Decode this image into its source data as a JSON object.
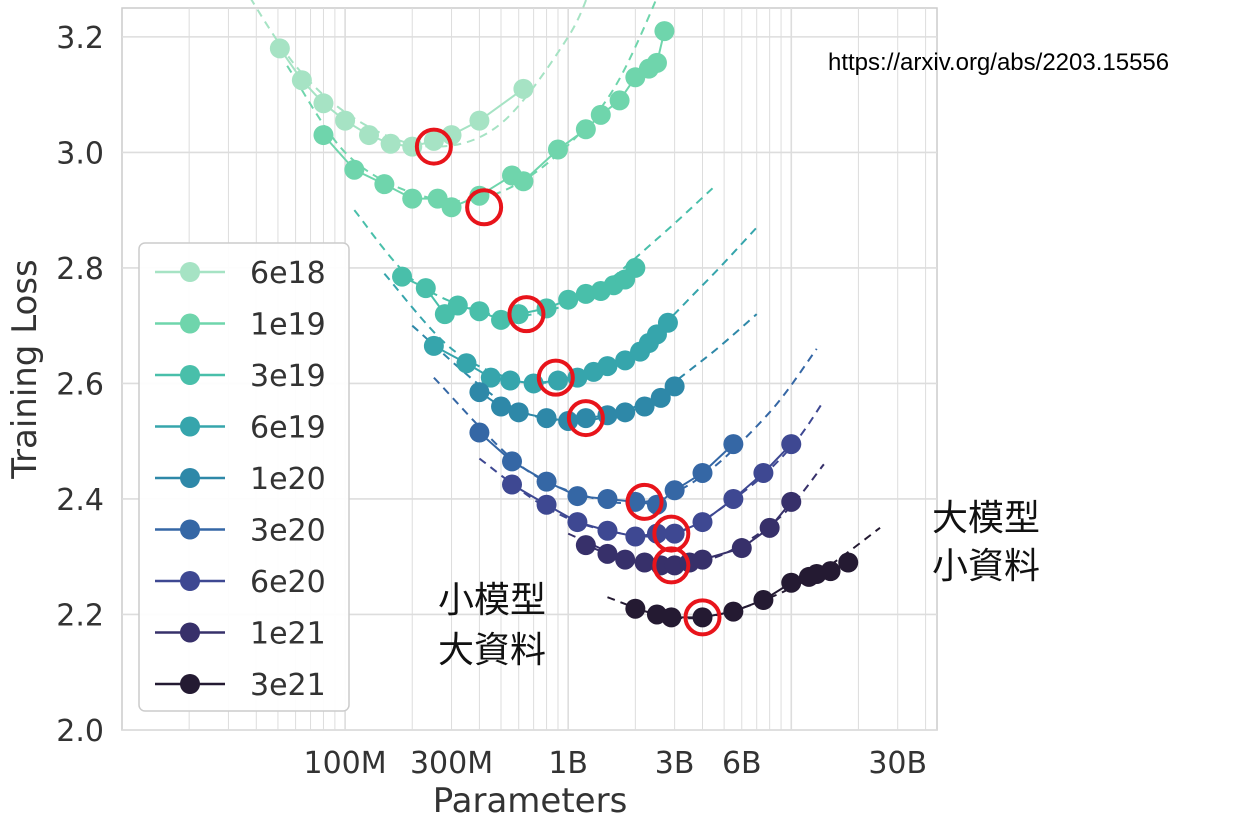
{
  "annotations": {
    "url": "https://arxiv.org/abs/2203.15556",
    "big_model": {
      "line1": "大模型",
      "line2": "小資料"
    },
    "small_model": {
      "line1": "小模型",
      "line2": "大資料"
    }
  },
  "chart_data": {
    "type": "scatter",
    "title": "",
    "xlabel": "Parameters",
    "ylabel": "Training Loss",
    "x_scale": "log",
    "xlim": [
      10000000,
      45000000000
    ],
    "ylim": [
      2.0,
      3.25
    ],
    "x_ticks": [
      {
        "value": 100000000,
        "label": "100M"
      },
      {
        "value": 300000000,
        "label": "300M"
      },
      {
        "value": 1000000000,
        "label": "1B"
      },
      {
        "value": 3000000000,
        "label": "3B"
      },
      {
        "value": 6000000000,
        "label": "6B"
      },
      {
        "value": 30000000000,
        "label": "30B"
      }
    ],
    "y_ticks": [
      {
        "value": 2.0,
        "label": "2.0"
      },
      {
        "value": 2.2,
        "label": "2.2"
      },
      {
        "value": 2.4,
        "label": "2.4"
      },
      {
        "value": 2.6,
        "label": "2.6"
      },
      {
        "value": 2.8,
        "label": "2.8"
      },
      {
        "value": 3.0,
        "label": "3.0"
      },
      {
        "value": 3.2,
        "label": "3.2"
      }
    ],
    "grid": true,
    "legend_position": "left",
    "series": [
      {
        "name": "6e18",
        "color": "#a6e3c4",
        "x": [
          51000000,
          64000000,
          80000000,
          100000000,
          128000000,
          160000000,
          200000000,
          250000000,
          300000000,
          400000000,
          630000000
        ],
        "y": [
          3.18,
          3.125,
          3.085,
          3.055,
          3.03,
          3.015,
          3.01,
          3.02,
          3.03,
          3.055,
          3.11
        ],
        "fit": [
          [
            30000000,
            3.33
          ],
          [
            60000000,
            3.15
          ],
          [
            120000000,
            3.05
          ],
          [
            250000000,
            3.01
          ],
          [
            500000000,
            3.05
          ],
          [
            1000000000,
            3.2
          ],
          [
            1300000000,
            3.3
          ]
        ],
        "optimal": [
          250000000,
          3.01
        ]
      },
      {
        "name": "1e19",
        "color": "#6fd5ac",
        "x": [
          80000000,
          110000000,
          150000000,
          200000000,
          260000000,
          300000000,
          400000000,
          560000000,
          630000000,
          900000000,
          1200000000,
          1400000000,
          1700000000,
          2000000000,
          2300000000,
          2500000000,
          2700000000
        ],
        "y": [
          3.03,
          2.97,
          2.945,
          2.92,
          2.92,
          2.905,
          2.925,
          2.96,
          2.95,
          3.005,
          3.04,
          3.065,
          3.09,
          3.13,
          3.145,
          3.155,
          3.21
        ],
        "fit": [
          [
            55000000,
            3.15
          ],
          [
            100000000,
            3.0
          ],
          [
            200000000,
            2.93
          ],
          [
            400000000,
            2.92
          ],
          [
            800000000,
            2.98
          ],
          [
            1600000000,
            3.11
          ],
          [
            3000000000,
            3.34
          ]
        ],
        "optimal": [
          420000000,
          2.905
        ]
      },
      {
        "name": "3e19",
        "color": "#49bfaa",
        "x": [
          180000000,
          230000000,
          280000000,
          320000000,
          400000000,
          500000000,
          600000000,
          800000000,
          1000000000,
          1200000000,
          1400000000,
          1600000000,
          1800000000,
          2000000000
        ],
        "y": [
          2.785,
          2.765,
          2.72,
          2.735,
          2.725,
          2.71,
          2.72,
          2.73,
          2.745,
          2.755,
          2.76,
          2.77,
          2.78,
          2.8
        ],
        "fit": [
          [
            110000000,
            2.9
          ],
          [
            200000000,
            2.78
          ],
          [
            400000000,
            2.725
          ],
          [
            700000000,
            2.72
          ],
          [
            1300000000,
            2.76
          ],
          [
            2500000000,
            2.85
          ],
          [
            4500000000,
            2.94
          ]
        ],
        "optimal": [
          650000000,
          2.72
        ]
      },
      {
        "name": "6e19",
        "color": "#36a5ac",
        "x": [
          250000000,
          350000000,
          450000000,
          550000000,
          700000000,
          900000000,
          1100000000,
          1300000000,
          1500000000,
          1800000000,
          2100000000,
          2300000000,
          2500000000,
          2800000000
        ],
        "y": [
          2.665,
          2.635,
          2.61,
          2.605,
          2.6,
          2.605,
          2.61,
          2.62,
          2.63,
          2.64,
          2.655,
          2.67,
          2.685,
          2.705
        ],
        "fit": [
          [
            150000000,
            2.79
          ],
          [
            300000000,
            2.66
          ],
          [
            600000000,
            2.605
          ],
          [
            1000000000,
            2.61
          ],
          [
            2000000000,
            2.66
          ],
          [
            4000000000,
            2.77
          ],
          [
            7000000000,
            2.87
          ]
        ],
        "optimal": [
          880000000,
          2.61
        ]
      },
      {
        "name": "1e20",
        "color": "#2e88a8",
        "x": [
          400000000,
          500000000,
          600000000,
          800000000,
          1000000000,
          1200000000,
          1500000000,
          1800000000,
          2200000000,
          2600000000,
          3000000000
        ],
        "y": [
          2.585,
          2.56,
          2.55,
          2.54,
          2.535,
          2.54,
          2.545,
          2.55,
          2.56,
          2.575,
          2.595
        ],
        "fit": [
          [
            200000000,
            2.7
          ],
          [
            500000000,
            2.57
          ],
          [
            1000000000,
            2.535
          ],
          [
            2000000000,
            2.56
          ],
          [
            4000000000,
            2.64
          ],
          [
            7000000000,
            2.72
          ]
        ],
        "optimal": [
          1200000000,
          2.54
        ]
      },
      {
        "name": "3e20",
        "color": "#3567a5",
        "x": [
          400000000,
          560000000,
          800000000,
          1100000000,
          1500000000,
          2000000000,
          2500000000,
          3000000000,
          4000000000,
          5500000000
        ],
        "y": [
          2.515,
          2.465,
          2.43,
          2.405,
          2.4,
          2.395,
          2.39,
          2.415,
          2.445,
          2.495
        ],
        "fit": [
          [
            250000000,
            2.61
          ],
          [
            600000000,
            2.46
          ],
          [
            1200000000,
            2.405
          ],
          [
            2200000000,
            2.395
          ],
          [
            4000000000,
            2.44
          ],
          [
            8000000000,
            2.55
          ],
          [
            13000000000,
            2.66
          ]
        ],
        "optimal": [
          2200000000,
          2.395
        ]
      },
      {
        "name": "6e20",
        "color": "#3e4892",
        "x": [
          560000000,
          800000000,
          1100000000,
          1500000000,
          2000000000,
          2500000000,
          3000000000,
          4000000000,
          5500000000,
          7500000000,
          10000000000
        ],
        "y": [
          2.425,
          2.39,
          2.36,
          2.345,
          2.335,
          2.34,
          2.34,
          2.36,
          2.4,
          2.445,
          2.495
        ],
        "fit": [
          [
            400000000,
            2.47
          ],
          [
            800000000,
            2.385
          ],
          [
            1500000000,
            2.345
          ],
          [
            3000000000,
            2.34
          ],
          [
            6000000000,
            2.41
          ],
          [
            10000000000,
            2.49
          ],
          [
            14000000000,
            2.57
          ]
        ],
        "optimal": [
          2900000000,
          2.34
        ]
      },
      {
        "name": "1e21",
        "color": "#37306a",
        "x": [
          1200000000,
          1500000000,
          1800000000,
          2200000000,
          2600000000,
          3000000000,
          3500000000,
          4000000000,
          6000000000,
          8000000000,
          10000000000
        ],
        "y": [
          2.32,
          2.305,
          2.295,
          2.29,
          2.285,
          2.285,
          2.29,
          2.295,
          2.315,
          2.35,
          2.395
        ],
        "fit": [
          [
            1000000000,
            2.34
          ],
          [
            2000000000,
            2.29
          ],
          [
            3000000000,
            2.285
          ],
          [
            5000000000,
            2.305
          ],
          [
            9000000000,
            2.37
          ],
          [
            14000000000,
            2.46
          ]
        ],
        "optimal": [
          2900000000,
          2.285
        ]
      },
      {
        "name": "3e21",
        "color": "#241a32",
        "x": [
          2000000000,
          2500000000,
          2900000000,
          4000000000,
          5500000000,
          7500000000,
          10000000000,
          12000000000,
          13000000000,
          15000000000,
          18000000000
        ],
        "y": [
          2.21,
          2.2,
          2.195,
          2.195,
          2.205,
          2.225,
          2.255,
          2.265,
          2.27,
          2.275,
          2.29
        ],
        "fit": [
          [
            1500000000,
            2.23
          ],
          [
            2500000000,
            2.2
          ],
          [
            4000000000,
            2.195
          ],
          [
            7000000000,
            2.22
          ],
          [
            13000000000,
            2.27
          ],
          [
            25000000000,
            2.35
          ]
        ],
        "optimal": [
          4000000000,
          2.195
        ]
      }
    ]
  }
}
